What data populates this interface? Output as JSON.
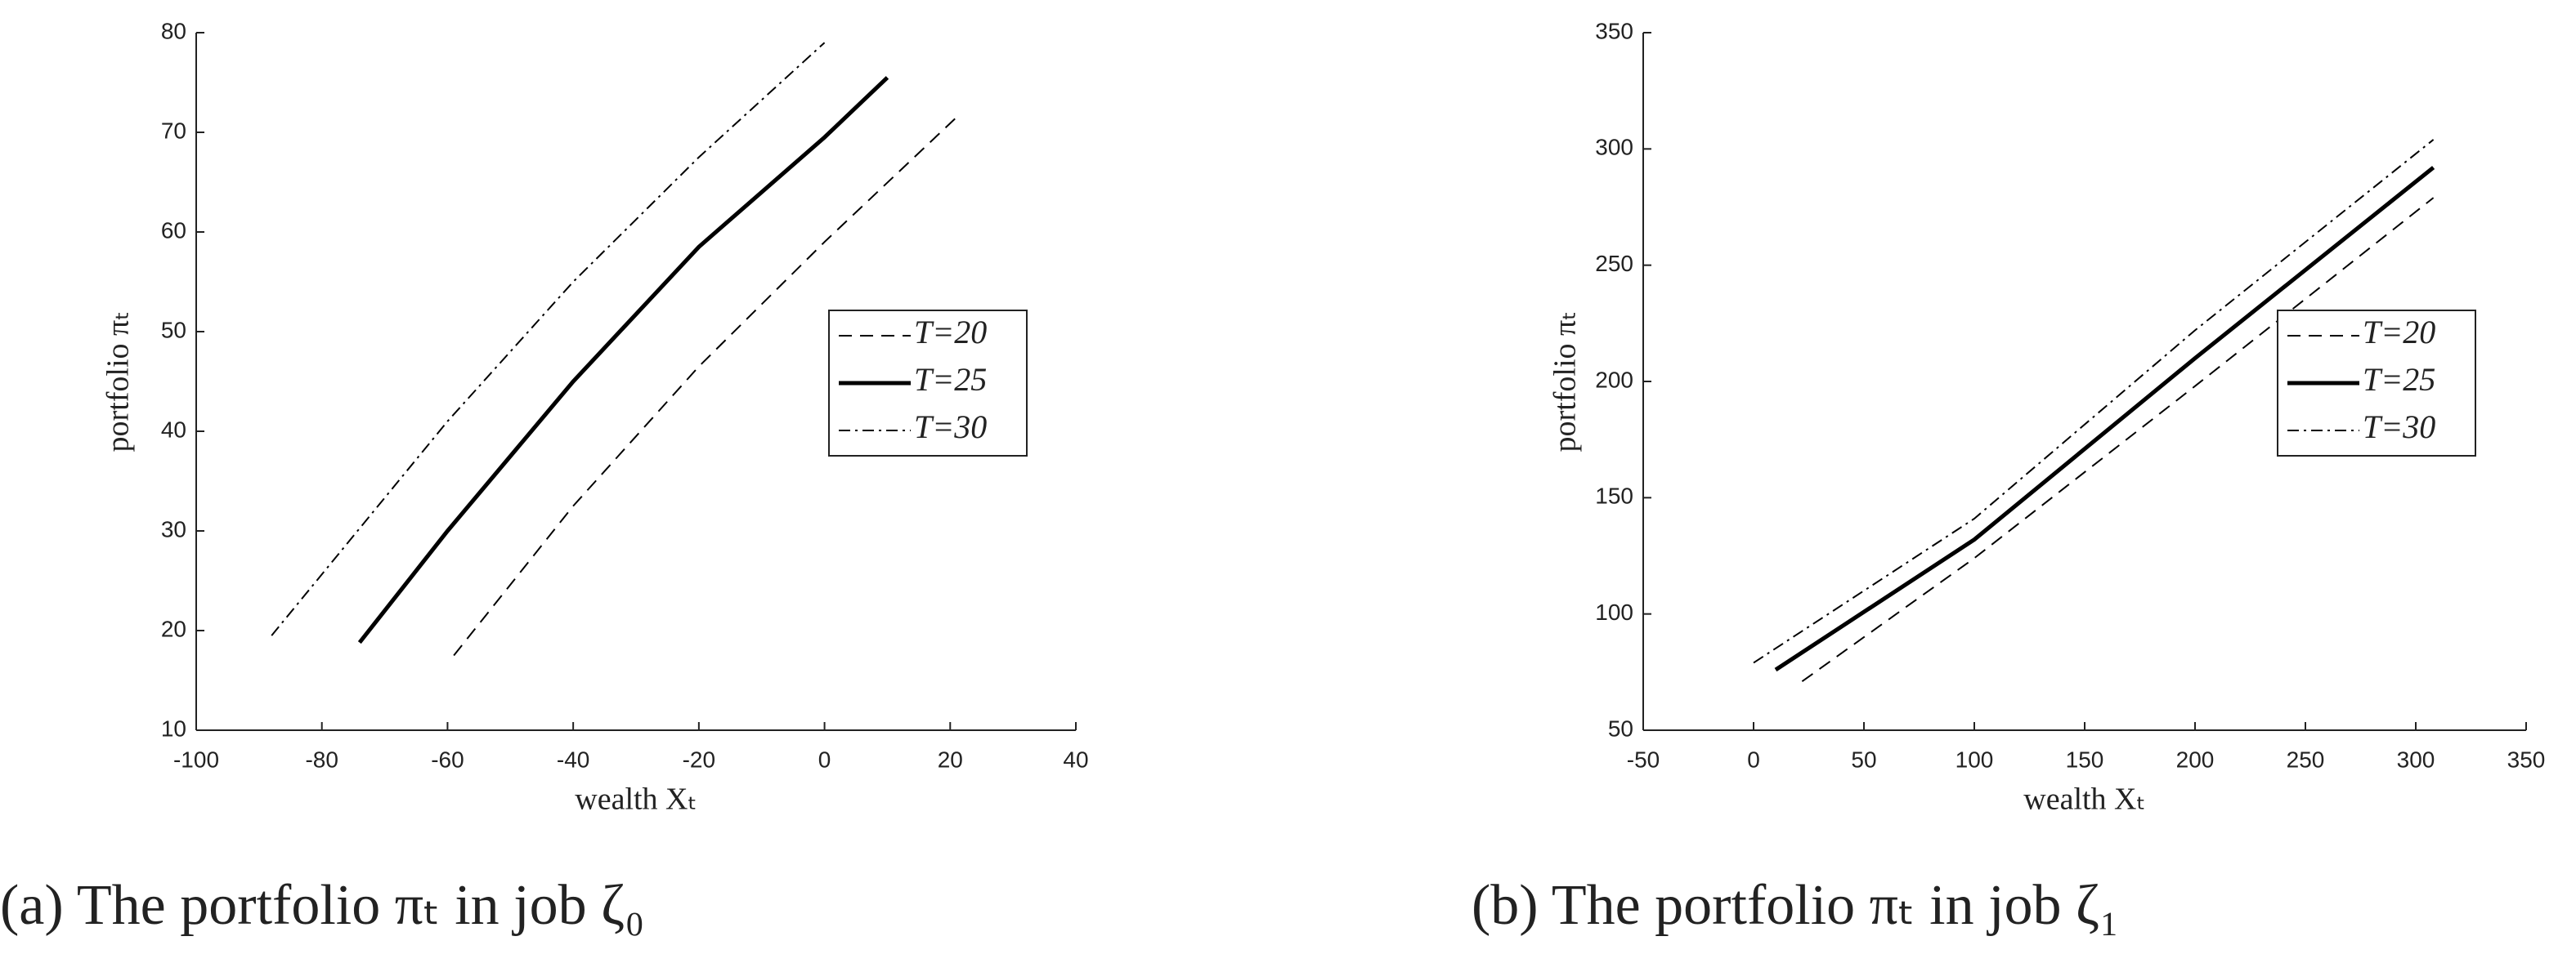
{
  "chart_data": [
    {
      "type": "line",
      "caption": "(a) The portfolio πₜ in job ζ₀",
      "xlabel": "wealth Xₜ",
      "ylabel": "portfolio πₜ",
      "xlim": [
        -100,
        40
      ],
      "xticks": [
        -100,
        -80,
        -60,
        -40,
        -20,
        0,
        20,
        40
      ],
      "ylim": [
        10,
        80
      ],
      "yticks": [
        10,
        20,
        30,
        40,
        50,
        60,
        70,
        80
      ],
      "legend": "east",
      "series": [
        {
          "name": "T=20",
          "style": "dashed",
          "color": "#000000",
          "x": [
            -59,
            -40,
            -20,
            0,
            21
          ],
          "values": [
            17.5,
            32.5,
            46.5,
            59,
            71.5
          ]
        },
        {
          "name": "T=25",
          "style": "solid",
          "color": "#000000",
          "x": [
            -74,
            -60,
            -40,
            -20,
            0,
            10
          ],
          "values": [
            18.8,
            30,
            45,
            58.5,
            69.5,
            75.5
          ]
        },
        {
          "name": "T=30",
          "style": "dashdot",
          "color": "#000000",
          "x": [
            -88,
            -60,
            -40,
            -20,
            0
          ],
          "values": [
            19.5,
            41,
            55,
            67.5,
            79
          ]
        }
      ]
    },
    {
      "type": "line",
      "caption": "(b) The portfolio πₜ in job ζ₁",
      "xlabel": "wealth Xₜ",
      "ylabel": "portfolio πₜ",
      "xlim": [
        -50,
        350
      ],
      "xticks": [
        -50,
        0,
        50,
        100,
        150,
        200,
        250,
        300,
        350
      ],
      "ylim": [
        50,
        350
      ],
      "yticks": [
        50,
        100,
        150,
        200,
        250,
        300,
        350
      ],
      "legend": "east",
      "series": [
        {
          "name": "T=20",
          "style": "dashed",
          "color": "#000000",
          "x": [
            22,
            100,
            200,
            308
          ],
          "values": [
            71,
            124,
            198,
            279
          ]
        },
        {
          "name": "T=25",
          "style": "solid",
          "color": "#000000",
          "x": [
            10,
            100,
            200,
            308
          ],
          "values": [
            76,
            132,
            210,
            292
          ]
        },
        {
          "name": "T=30",
          "style": "dashdot",
          "color": "#000000",
          "x": [
            0,
            100,
            200,
            308
          ],
          "values": [
            79,
            141,
            222,
            304
          ]
        }
      ]
    }
  ]
}
